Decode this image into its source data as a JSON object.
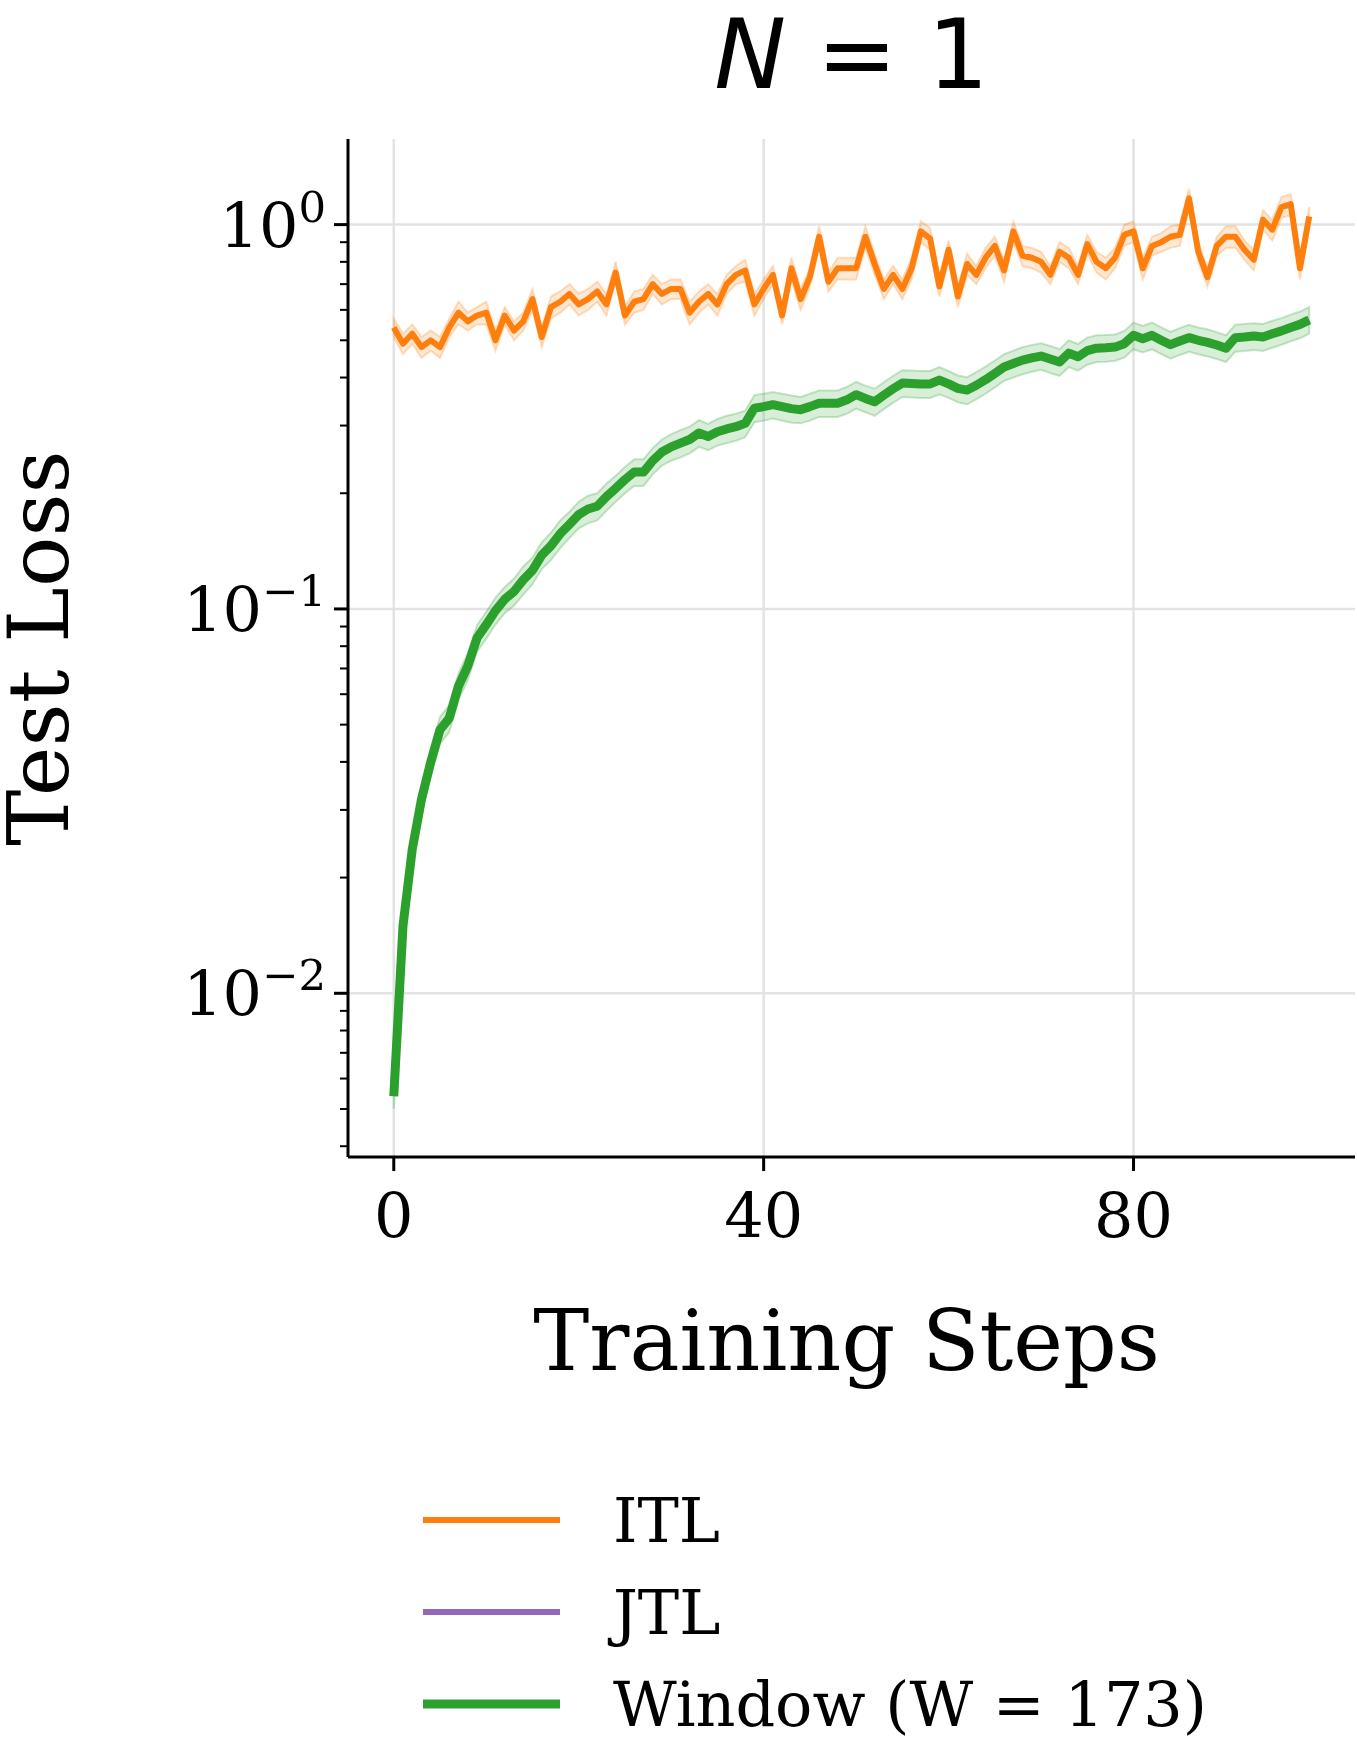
{
  "chart_data": {
    "type": "line",
    "title": "N = 1",
    "xlabel": "Training Steps",
    "ylabel": "Test Loss",
    "x": [
      0,
      1,
      2,
      3,
      4,
      5,
      6,
      7,
      8,
      9,
      10,
      11,
      12,
      13,
      14,
      15,
      16,
      17,
      18,
      19,
      20,
      21,
      22,
      23,
      24,
      25,
      26,
      27,
      28,
      29,
      30,
      31,
      32,
      33,
      34,
      35,
      36,
      37,
      38,
      39,
      40,
      41,
      42,
      43,
      44,
      45,
      46,
      47,
      48,
      49,
      50,
      51,
      52,
      53,
      54,
      55,
      56,
      57,
      58,
      59,
      60,
      61,
      62,
      63,
      64,
      65,
      66,
      67,
      68,
      69,
      70,
      71,
      72,
      73,
      74,
      75,
      76,
      77,
      78,
      79,
      80,
      81,
      82,
      83,
      84,
      85,
      86,
      87,
      88,
      89,
      90,
      91,
      92,
      93,
      94,
      95,
      96,
      97,
      98,
      99
    ],
    "series": [
      {
        "name": "ITL",
        "color": "#ff7f0e",
        "values": [
          0.54,
          0.49,
          0.52,
          0.48,
          0.5,
          0.48,
          0.54,
          0.59,
          0.56,
          0.58,
          0.59,
          0.5,
          0.58,
          0.53,
          0.56,
          0.64,
          0.51,
          0.61,
          0.63,
          0.66,
          0.62,
          0.64,
          0.67,
          0.62,
          0.75,
          0.58,
          0.63,
          0.64,
          0.7,
          0.66,
          0.68,
          0.68,
          0.59,
          0.63,
          0.66,
          0.62,
          0.7,
          0.74,
          0.76,
          0.62,
          0.68,
          0.74,
          0.58,
          0.77,
          0.64,
          0.73,
          0.93,
          0.71,
          0.77,
          0.77,
          0.77,
          0.93,
          0.79,
          0.68,
          0.74,
          0.68,
          0.77,
          0.96,
          0.92,
          0.69,
          0.86,
          0.65,
          0.79,
          0.74,
          0.82,
          0.88,
          0.76,
          0.96,
          0.83,
          0.82,
          0.8,
          0.74,
          0.85,
          0.82,
          0.74,
          0.89,
          0.8,
          0.77,
          0.82,
          0.94,
          0.96,
          0.77,
          0.88,
          0.9,
          0.93,
          0.94,
          1.17,
          0.85,
          0.73,
          0.88,
          0.93,
          0.93,
          0.86,
          0.81,
          1.03,
          0.97,
          1.11,
          1.13,
          0.77,
          1.05
        ],
        "lower": [
          0.51,
          0.46,
          0.49,
          0.45,
          0.47,
          0.45,
          0.51,
          0.55,
          0.53,
          0.55,
          0.55,
          0.47,
          0.55,
          0.5,
          0.53,
          0.6,
          0.48,
          0.57,
          0.59,
          0.62,
          0.58,
          0.6,
          0.63,
          0.58,
          0.71,
          0.55,
          0.59,
          0.6,
          0.66,
          0.62,
          0.64,
          0.64,
          0.55,
          0.59,
          0.62,
          0.58,
          0.66,
          0.7,
          0.71,
          0.58,
          0.64,
          0.7,
          0.55,
          0.72,
          0.6,
          0.69,
          0.87,
          0.67,
          0.72,
          0.72,
          0.72,
          0.87,
          0.74,
          0.64,
          0.7,
          0.64,
          0.72,
          0.9,
          0.86,
          0.65,
          0.81,
          0.61,
          0.74,
          0.7,
          0.77,
          0.83,
          0.71,
          0.9,
          0.78,
          0.77,
          0.75,
          0.7,
          0.8,
          0.77,
          0.7,
          0.84,
          0.75,
          0.72,
          0.77,
          0.88,
          0.9,
          0.72,
          0.83,
          0.85,
          0.87,
          0.88,
          1.1,
          0.8,
          0.69,
          0.83,
          0.87,
          0.87,
          0.81,
          0.76,
          0.97,
          0.91,
          1.04,
          1.06,
          0.72,
          0.99
        ],
        "upper": [
          0.57,
          0.52,
          0.55,
          0.51,
          0.53,
          0.51,
          0.57,
          0.63,
          0.59,
          0.61,
          0.63,
          0.53,
          0.61,
          0.56,
          0.59,
          0.68,
          0.54,
          0.65,
          0.67,
          0.7,
          0.66,
          0.68,
          0.71,
          0.66,
          0.8,
          0.61,
          0.67,
          0.68,
          0.74,
          0.7,
          0.72,
          0.72,
          0.63,
          0.67,
          0.7,
          0.66,
          0.74,
          0.78,
          0.81,
          0.66,
          0.72,
          0.78,
          0.61,
          0.82,
          0.68,
          0.77,
          0.99,
          0.75,
          0.82,
          0.82,
          0.82,
          0.99,
          0.84,
          0.72,
          0.78,
          0.72,
          0.82,
          1.02,
          0.98,
          0.73,
          0.91,
          0.69,
          0.84,
          0.78,
          0.87,
          0.93,
          0.81,
          1.02,
          0.88,
          0.87,
          0.85,
          0.78,
          0.9,
          0.87,
          0.78,
          0.94,
          0.85,
          0.82,
          0.87,
          1.0,
          1.02,
          0.82,
          0.93,
          0.95,
          0.99,
          1.0,
          1.24,
          0.9,
          0.77,
          0.93,
          0.99,
          0.99,
          0.91,
          0.86,
          1.09,
          1.03,
          1.18,
          1.2,
          0.82,
          1.11
        ]
      },
      {
        "name": "JTL",
        "color": "#9467bd",
        "values": [
          null,
          null,
          null,
          null,
          null,
          null,
          null,
          null,
          null,
          null,
          null,
          null,
          null,
          null,
          null,
          null,
          null,
          null,
          null,
          null,
          null,
          null,
          null,
          null,
          null,
          null,
          null,
          null,
          null,
          null,
          null,
          null,
          null,
          null,
          null,
          null,
          null,
          null,
          null,
          null,
          null,
          null,
          null,
          null,
          null,
          null,
          null,
          null,
          null,
          null,
          null,
          null,
          null,
          null,
          null,
          null,
          null,
          null,
          null,
          null,
          null,
          null,
          null,
          null,
          null,
          null,
          null,
          null,
          null,
          null,
          null,
          null,
          null,
          null,
          null,
          null,
          null,
          null,
          null,
          null,
          null,
          null,
          null,
          null,
          null,
          null,
          null,
          null,
          null,
          null,
          null,
          null,
          null,
          null,
          null,
          null,
          null,
          null,
          null,
          null
        ]
      },
      {
        "name": "Window (W = 173)",
        "color": "#2ca02c",
        "values": [
          0.0054,
          0.015,
          0.0237,
          0.032,
          0.04,
          0.0485,
          0.052,
          0.063,
          0.071,
          0.084,
          0.091,
          0.099,
          0.106,
          0.111,
          0.119,
          0.126,
          0.138,
          0.146,
          0.157,
          0.166,
          0.176,
          0.182,
          0.185,
          0.196,
          0.206,
          0.217,
          0.227,
          0.227,
          0.243,
          0.256,
          0.264,
          0.27,
          0.276,
          0.287,
          0.281,
          0.289,
          0.294,
          0.298,
          0.304,
          0.333,
          0.336,
          0.34,
          0.336,
          0.332,
          0.33,
          0.336,
          0.343,
          0.343,
          0.343,
          0.35,
          0.361,
          0.353,
          0.346,
          0.36,
          0.374,
          0.387,
          0.386,
          0.385,
          0.385,
          0.394,
          0.385,
          0.375,
          0.371,
          0.382,
          0.395,
          0.41,
          0.426,
          0.435,
          0.444,
          0.45,
          0.455,
          0.447,
          0.439,
          0.463,
          0.453,
          0.47,
          0.477,
          0.478,
          0.48,
          0.49,
          0.515,
          0.505,
          0.515,
          0.5,
          0.487,
          0.498,
          0.508,
          0.5,
          0.494,
          0.486,
          0.477,
          0.508,
          0.51,
          0.513,
          0.51,
          0.52,
          0.529,
          0.54,
          0.55,
          0.565
        ],
        "lower": [
          0.005,
          0.0138,
          0.0218,
          0.0294,
          0.0368,
          0.0446,
          0.0478,
          0.058,
          0.0653,
          0.0773,
          0.0837,
          0.0911,
          0.0975,
          0.102,
          0.109,
          0.116,
          0.127,
          0.134,
          0.144,
          0.153,
          0.162,
          0.167,
          0.17,
          0.18,
          0.19,
          0.2,
          0.209,
          0.209,
          0.224,
          0.236,
          0.243,
          0.248,
          0.254,
          0.264,
          0.259,
          0.266,
          0.27,
          0.274,
          0.28,
          0.306,
          0.309,
          0.313,
          0.309,
          0.305,
          0.304,
          0.309,
          0.316,
          0.316,
          0.316,
          0.322,
          0.332,
          0.325,
          0.318,
          0.331,
          0.344,
          0.356,
          0.355,
          0.354,
          0.354,
          0.362,
          0.354,
          0.345,
          0.341,
          0.351,
          0.363,
          0.377,
          0.392,
          0.4,
          0.408,
          0.414,
          0.419,
          0.411,
          0.404,
          0.426,
          0.417,
          0.432,
          0.439,
          0.44,
          0.442,
          0.451,
          0.474,
          0.465,
          0.474,
          0.46,
          0.448,
          0.458,
          0.467,
          0.46,
          0.454,
          0.447,
          0.439,
          0.467,
          0.469,
          0.472,
          0.469,
          0.478,
          0.487,
          0.497,
          0.506,
          0.52
        ],
        "upper": [
          0.0058,
          0.0162,
          0.0256,
          0.0346,
          0.0432,
          0.0524,
          0.0562,
          0.068,
          0.0767,
          0.0907,
          0.0983,
          0.107,
          0.114,
          0.12,
          0.129,
          0.136,
          0.149,
          0.158,
          0.17,
          0.179,
          0.19,
          0.197,
          0.2,
          0.212,
          0.222,
          0.234,
          0.245,
          0.245,
          0.262,
          0.276,
          0.285,
          0.292,
          0.298,
          0.31,
          0.303,
          0.312,
          0.318,
          0.322,
          0.328,
          0.36,
          0.363,
          0.367,
          0.363,
          0.359,
          0.356,
          0.363,
          0.37,
          0.37,
          0.37,
          0.378,
          0.39,
          0.381,
          0.374,
          0.389,
          0.404,
          0.418,
          0.417,
          0.416,
          0.416,
          0.426,
          0.416,
          0.405,
          0.401,
          0.413,
          0.427,
          0.443,
          0.46,
          0.47,
          0.48,
          0.486,
          0.491,
          0.483,
          0.474,
          0.5,
          0.489,
          0.508,
          0.515,
          0.516,
          0.518,
          0.529,
          0.556,
          0.545,
          0.556,
          0.54,
          0.526,
          0.538,
          0.549,
          0.54,
          0.534,
          0.525,
          0.515,
          0.549,
          0.551,
          0.554,
          0.551,
          0.562,
          0.571,
          0.583,
          0.594,
          0.61
        ]
      }
    ],
    "xlim": [
      -4.95,
      103.95
    ],
    "xticks": [
      0,
      40,
      80
    ],
    "ylim": [
      0.00375,
      1.67
    ],
    "log": true,
    "yticks": [
      {
        "value": 1,
        "label": "10$^{0}$"
      },
      {
        "value": 0.1,
        "label": "10$^{−1}$"
      },
      {
        "value": 0.01,
        "label": "10$^{−2}$"
      },
      {
        "value": 0.004,
        "label": null
      },
      {
        "value": 0.005,
        "label": null
      },
      {
        "value": 0.006,
        "label": null
      },
      {
        "value": 0.007,
        "label": null
      },
      {
        "value": 0.008,
        "label": null
      },
      {
        "value": 0.009,
        "label": null
      },
      {
        "value": 0.02,
        "label": null
      },
      {
        "value": 0.03,
        "label": null
      },
      {
        "value": 0.04,
        "label": null
      },
      {
        "value": 0.05,
        "label": null
      },
      {
        "value": 0.06,
        "label": null
      },
      {
        "value": 0.07,
        "label": null
      },
      {
        "value": 0.08,
        "label": null
      },
      {
        "value": 0.09,
        "label": null
      },
      {
        "value": 0.2,
        "label": null
      },
      {
        "value": 0.3,
        "label": null
      },
      {
        "value": 0.4,
        "label": null
      },
      {
        "value": 0.5,
        "label": null
      },
      {
        "value": 0.6,
        "label": null
      },
      {
        "value": 0.7,
        "label": null
      },
      {
        "value": 0.8,
        "label": null
      },
      {
        "value": 0.9,
        "label": null
      }
    ],
    "grid": true,
    "legend": "bottom",
    "line_style": "solid",
    "marker": "none"
  }
}
